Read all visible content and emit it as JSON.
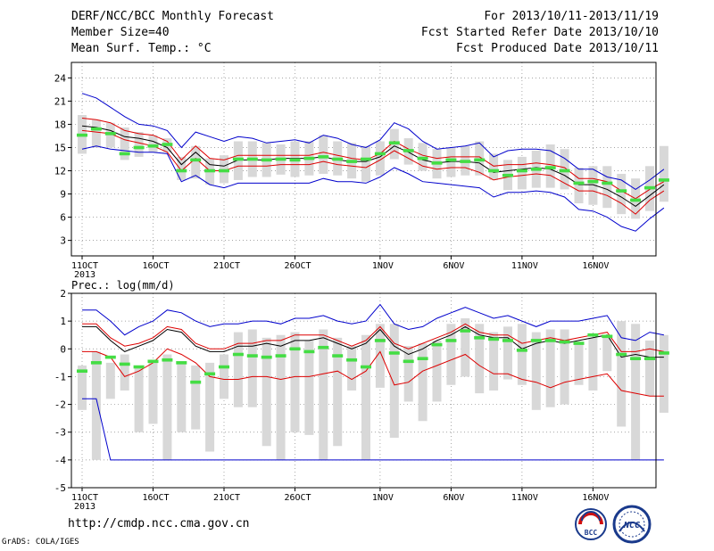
{
  "header": {
    "left": [
      "DERF/NCC/BCC Monthly Forecast",
      "Member Size=40",
      "Mean Surf. Temp.: °C"
    ],
    "right": [
      "For 2013/10/11-2013/11/19",
      "Fcst Started Refer Date 2013/10/10",
      "Fcst Produced Date 2013/10/11"
    ]
  },
  "footer": {
    "url": "http://cmdp.ncc.cma.gov.cn",
    "credit": "GrADS: COLA/IGES"
  },
  "logos": {
    "bcc": "BCC",
    "ncc": "NCC"
  },
  "colors": {
    "envelope": "#0000cc",
    "band": "#dd0000",
    "mean": "#000000",
    "ensemble_mean": "#44dd44",
    "box": "#d8d8d8",
    "grid": "#888888"
  },
  "chart_data": [
    {
      "type": "box-line",
      "title": "Mean Surf. Temp.: °C",
      "x_labels": [
        "11OCT",
        "16OCT",
        "21OCT",
        "26OCT",
        "1NOV",
        "6NOV",
        "11NOV",
        "16NOV"
      ],
      "x_year": "2013",
      "y_ticks": [
        3,
        6,
        9,
        12,
        15,
        18,
        21,
        24
      ],
      "ylim": [
        1,
        26
      ],
      "grid": "dotted",
      "box_low": [
        14.2,
        15.0,
        15.0,
        13.4,
        13.8,
        14.4,
        14.4,
        10.8,
        11.0,
        10.2,
        10.4,
        10.8,
        11.2,
        11.2,
        11.5,
        11.2,
        11.4,
        11.6,
        11.4,
        11.0,
        10.6,
        11.4,
        13.5,
        12.8,
        12.0,
        11.0,
        11.2,
        11.4,
        11.4,
        10.8,
        9.5,
        9.6,
        9.8,
        9.8,
        9.6,
        7.8,
        7.6,
        7.2,
        6.4,
        5.8,
        6.8,
        8.0
      ],
      "box_high": [
        19.2,
        18.6,
        18.2,
        17.6,
        17.0,
        16.6,
        16.2,
        13.8,
        15.2,
        13.6,
        14.0,
        15.8,
        15.8,
        15.6,
        15.4,
        15.8,
        15.8,
        16.6,
        15.8,
        15.6,
        15.2,
        15.8,
        17.4,
        16.2,
        15.6,
        14.8,
        15.0,
        15.2,
        15.8,
        14.2,
        13.4,
        13.8,
        14.6,
        15.4,
        14.8,
        12.4,
        12.6,
        12.6,
        11.6,
        11.0,
        12.6,
        15.2
      ],
      "ensemble_mean": [
        16.6,
        17.4,
        16.8,
        14.2,
        15.0,
        15.2,
        15.4,
        12.0,
        13.4,
        12.0,
        12.0,
        13.5,
        13.5,
        13.4,
        13.5,
        13.4,
        13.6,
        13.8,
        13.5,
        13.2,
        13.5,
        14.2,
        15.6,
        14.6,
        13.6,
        13.0,
        13.4,
        13.2,
        13.4,
        12.0,
        11.4,
        12.0,
        12.2,
        12.4,
        12.0,
        10.4,
        10.6,
        10.4,
        9.4,
        8.2,
        9.8,
        10.8
      ],
      "series": [
        {
          "name": "upper-envelope",
          "values": [
            22.0,
            21.4,
            20.2,
            19.0,
            18.0,
            17.8,
            17.2,
            15.0,
            17.0,
            16.4,
            15.8,
            16.4,
            16.2,
            15.6,
            15.8,
            16.0,
            15.6,
            16.6,
            16.2,
            15.4,
            15.0,
            16.0,
            18.2,
            17.4,
            15.8,
            14.8,
            15.0,
            15.2,
            15.6,
            13.8,
            14.6,
            14.8,
            14.8,
            14.6,
            13.6,
            12.2,
            12.2,
            11.2,
            10.8,
            9.6,
            10.8,
            12.2
          ]
        },
        {
          "name": "upper-band",
          "values": [
            18.8,
            18.6,
            18.2,
            17.2,
            16.8,
            16.6,
            15.8,
            13.4,
            15.2,
            13.6,
            13.4,
            14.0,
            14.0,
            14.0,
            14.0,
            14.0,
            14.0,
            14.4,
            14.0,
            13.6,
            13.4,
            14.2,
            15.8,
            14.8,
            14.0,
            13.6,
            13.8,
            13.8,
            13.8,
            12.6,
            12.8,
            12.8,
            13.0,
            12.8,
            12.4,
            11.0,
            11.0,
            10.6,
            9.4,
            8.4,
            9.6,
            10.6
          ]
        },
        {
          "name": "mean",
          "values": [
            17.8,
            17.6,
            17.2,
            16.4,
            16.2,
            15.8,
            15.0,
            12.8,
            14.4,
            12.8,
            12.6,
            13.4,
            13.4,
            13.4,
            13.6,
            13.6,
            13.6,
            13.8,
            13.4,
            13.2,
            13.2,
            13.8,
            15.2,
            14.4,
            13.4,
            13.0,
            13.2,
            13.2,
            13.0,
            11.8,
            12.0,
            12.2,
            12.4,
            12.2,
            11.4,
            10.2,
            10.2,
            9.6,
            8.6,
            7.4,
            8.8,
            10.2
          ]
        },
        {
          "name": "lower-band",
          "values": [
            17.2,
            17.0,
            16.8,
            16.0,
            15.6,
            15.2,
            14.4,
            12.0,
            13.6,
            12.0,
            12.0,
            12.6,
            12.6,
            12.6,
            12.8,
            12.8,
            12.8,
            13.2,
            12.8,
            12.6,
            12.4,
            13.4,
            14.6,
            13.6,
            12.6,
            12.2,
            12.4,
            12.4,
            11.8,
            10.8,
            11.2,
            11.4,
            11.6,
            11.4,
            10.4,
            9.4,
            9.4,
            8.8,
            7.8,
            6.4,
            8.2,
            9.4
          ]
        },
        {
          "name": "lower-envelope",
          "values": [
            14.8,
            15.2,
            14.8,
            14.6,
            14.4,
            14.4,
            14.2,
            10.6,
            11.4,
            10.2,
            9.8,
            10.4,
            10.4,
            10.4,
            10.4,
            10.4,
            10.4,
            11.0,
            10.6,
            10.6,
            10.4,
            11.2,
            12.4,
            11.6,
            10.6,
            10.4,
            10.2,
            10.0,
            9.8,
            8.6,
            9.2,
            9.2,
            9.4,
            9.2,
            8.6,
            7.0,
            6.8,
            6.0,
            4.8,
            4.2,
            5.8,
            7.2
          ]
        }
      ]
    },
    {
      "type": "box-line",
      "title": "Prec.: log(mm/d)",
      "x_labels": [
        "11OCT",
        "16OCT",
        "21OCT",
        "26OCT",
        "1NOV",
        "6NOV",
        "11NOV",
        "16NOV"
      ],
      "x_year": "2013",
      "y_ticks": [
        -5,
        -4,
        -3,
        -2,
        -1,
        0,
        1,
        2
      ],
      "ylim": [
        -5,
        2
      ],
      "grid": "dotted",
      "box_low": [
        -2.2,
        -4.0,
        -1.8,
        -1.5,
        -3.0,
        -2.7,
        -4.0,
        -3.0,
        -2.9,
        -3.7,
        -1.8,
        -2.1,
        -2.1,
        -3.5,
        -4.0,
        -3.0,
        -3.1,
        -4.0,
        -3.5,
        -1.5,
        -4.0,
        -1.4,
        -3.2,
        -1.9,
        -2.6,
        -1.9,
        -1.3,
        -1.0,
        -1.6,
        -1.5,
        -1.1,
        -1.3,
        -2.2,
        -2.1,
        -2.0,
        -1.3,
        -1.5,
        -0.8,
        -2.8,
        -4.0,
        -1.7,
        -2.3
      ],
      "box_high": [
        -0.6,
        -0.1,
        -0.5,
        -0.2,
        -0.7,
        -0.5,
        -0.2,
        -0.5,
        -0.6,
        -0.5,
        -0.2,
        0.6,
        0.7,
        0.4,
        0.5,
        0.6,
        0.3,
        0.7,
        0.4,
        0.1,
        0.5,
        0.9,
        0.9,
        0.1,
        0.2,
        0.3,
        0.9,
        1.1,
        0.9,
        0.6,
        0.8,
        0.9,
        0.6,
        0.7,
        0.7,
        0.2,
        0.4,
        0.4,
        1.0,
        0.9,
        0.3,
        0.5
      ],
      "ensemble_mean": [
        -0.8,
        -0.5,
        -0.3,
        -0.55,
        -0.65,
        -0.45,
        -0.4,
        -0.5,
        -1.2,
        -0.9,
        -0.65,
        -0.2,
        -0.25,
        -0.3,
        -0.25,
        0.0,
        -0.1,
        0.05,
        -0.25,
        -0.4,
        -0.65,
        0.3,
        -0.15,
        -0.45,
        -0.35,
        0.15,
        0.3,
        0.65,
        0.4,
        0.35,
        0.3,
        -0.05,
        0.3,
        0.3,
        0.25,
        0.2,
        0.5,
        0.45,
        -0.2,
        -0.35,
        -0.35,
        -0.15
      ],
      "series": [
        {
          "name": "upper-envelope",
          "values": [
            1.4,
            1.4,
            1.0,
            0.5,
            0.8,
            1.0,
            1.4,
            1.3,
            1.0,
            0.8,
            0.9,
            0.9,
            1.0,
            1.0,
            0.9,
            1.1,
            1.1,
            1.2,
            1.0,
            0.9,
            1.0,
            1.6,
            0.9,
            0.7,
            0.8,
            1.1,
            1.3,
            1.5,
            1.3,
            1.1,
            1.2,
            1.0,
            0.8,
            1.0,
            1.0,
            1.0,
            1.1,
            1.2,
            0.4,
            0.3,
            0.6,
            0.5
          ]
        },
        {
          "name": "upper-band",
          "values": [
            0.9,
            0.9,
            0.4,
            0.1,
            0.2,
            0.4,
            0.8,
            0.7,
            0.2,
            0.0,
            0.0,
            0.2,
            0.2,
            0.3,
            0.3,
            0.5,
            0.5,
            0.5,
            0.3,
            0.1,
            0.3,
            0.8,
            0.2,
            0.0,
            0.2,
            0.4,
            0.6,
            0.9,
            0.6,
            0.5,
            0.5,
            0.2,
            0.3,
            0.4,
            0.3,
            0.4,
            0.5,
            0.6,
            -0.1,
            -0.1,
            0.0,
            -0.1
          ]
        },
        {
          "name": "mean",
          "values": [
            0.8,
            0.8,
            0.3,
            -0.1,
            0.1,
            0.3,
            0.7,
            0.6,
            0.1,
            -0.1,
            -0.1,
            0.1,
            0.1,
            0.2,
            0.1,
            0.3,
            0.3,
            0.4,
            0.2,
            0.0,
            0.2,
            0.7,
            0.1,
            -0.2,
            0.0,
            0.3,
            0.5,
            0.8,
            0.5,
            0.4,
            0.4,
            0.0,
            0.2,
            0.3,
            0.2,
            0.3,
            0.4,
            0.5,
            -0.3,
            -0.2,
            -0.3,
            -0.3
          ]
        },
        {
          "name": "lower-band",
          "values": [
            -0.1,
            -0.1,
            -0.3,
            -1.0,
            -0.8,
            -0.5,
            0.0,
            -0.2,
            -0.5,
            -1.0,
            -1.1,
            -1.1,
            -1.0,
            -1.0,
            -1.1,
            -1.0,
            -1.0,
            -0.9,
            -0.8,
            -1.1,
            -0.8,
            -0.1,
            -1.3,
            -1.2,
            -0.8,
            -0.6,
            -0.4,
            -0.2,
            -0.6,
            -0.9,
            -0.9,
            -1.1,
            -1.2,
            -1.4,
            -1.2,
            -1.1,
            -1.0,
            -0.9,
            -1.5,
            -1.6,
            -1.7,
            -1.7
          ]
        },
        {
          "name": "lower-envelope",
          "values": [
            -1.8,
            -1.8,
            -4.0,
            -4.0,
            -4.0,
            -4.0,
            -4.0,
            -4.0,
            -4.0,
            -4.0,
            -4.0,
            -4.0,
            -4.0,
            -4.0,
            -4.0,
            -4.0,
            -4.0,
            -4.0,
            -4.0,
            -4.0,
            -4.0,
            -4.0,
            -4.0,
            -4.0,
            -4.0,
            -4.0,
            -4.0,
            -4.0,
            -4.0,
            -4.0,
            -4.0,
            -4.0,
            -4.0,
            -4.0,
            -4.0,
            -4.0,
            -4.0,
            -4.0,
            -4.0,
            -4.0,
            -4.0,
            -4.0
          ]
        }
      ]
    }
  ]
}
